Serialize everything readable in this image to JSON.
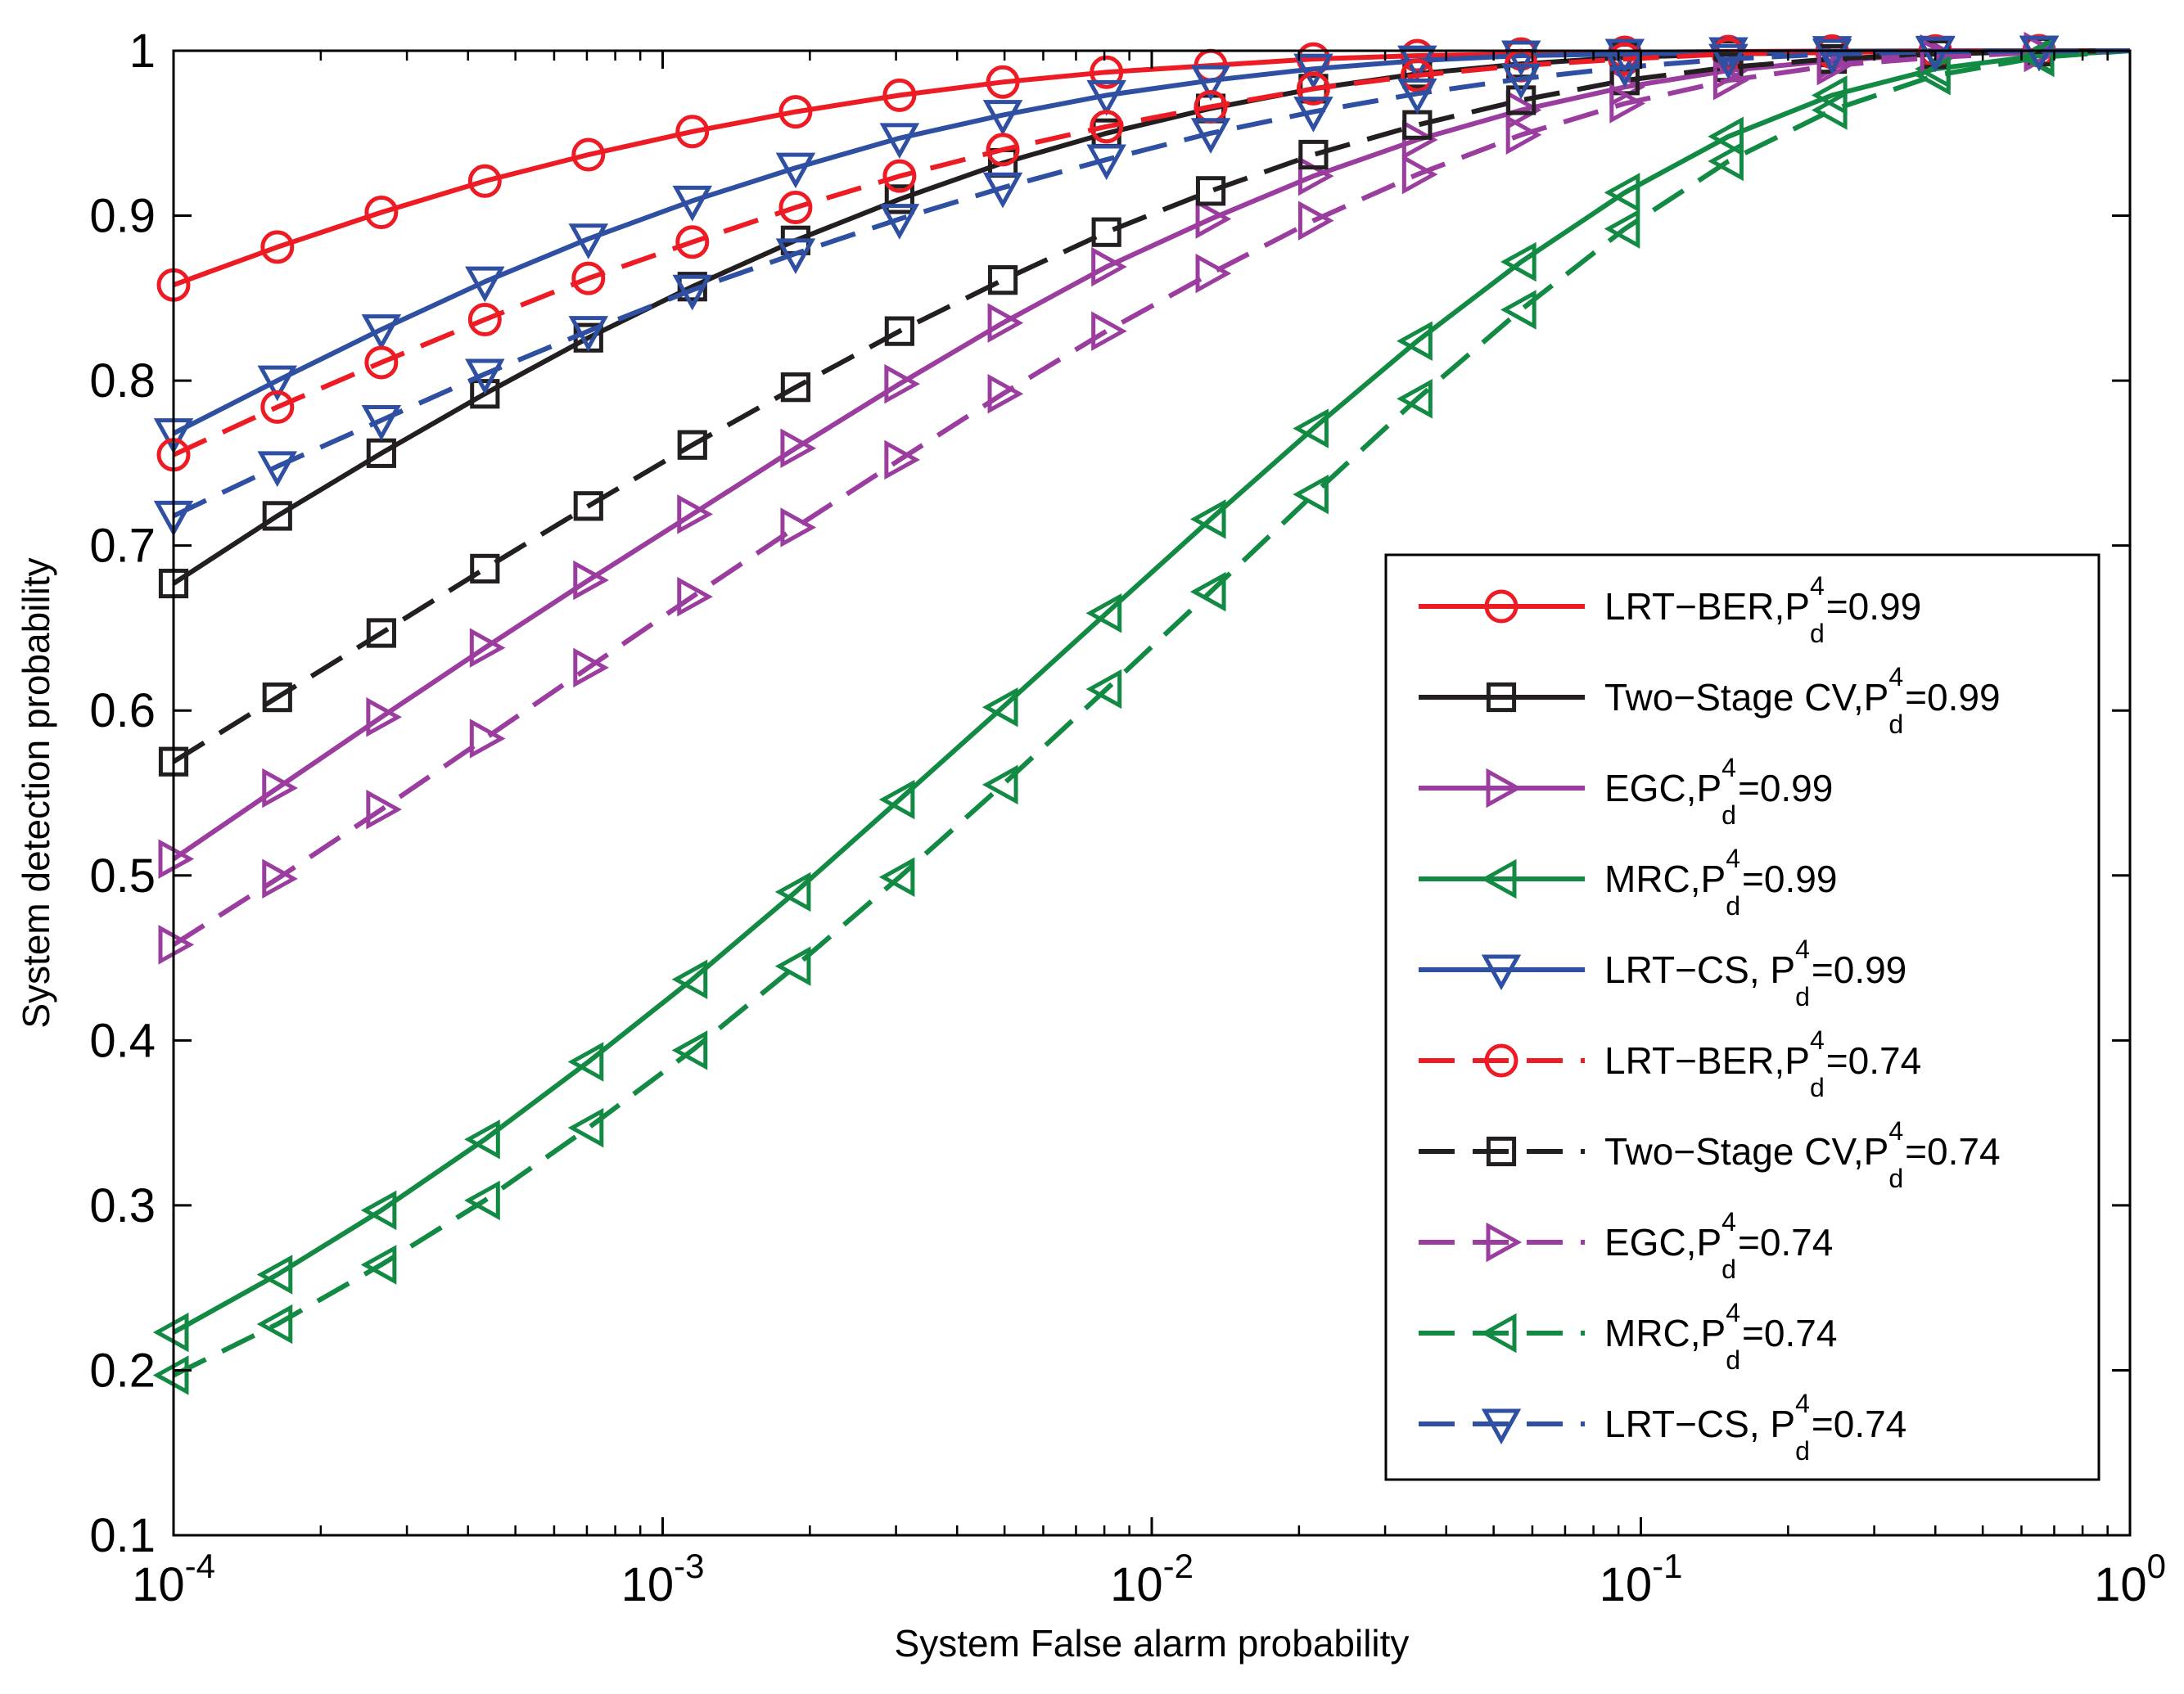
{
  "chart_data": {
    "type": "line",
    "title": "",
    "xlabel": "System False alarm probability",
    "ylabel": "System detection probability",
    "xscale": "log",
    "xlim": [
      0.0001,
      1
    ],
    "ylim": [
      0.1,
      1
    ],
    "grid": false,
    "legend_position": "lower-right",
    "x_ticks": [
      {
        "value": 0.0001,
        "base": "10",
        "exp": "-4"
      },
      {
        "value": 0.001,
        "base": "10",
        "exp": "-3"
      },
      {
        "value": 0.01,
        "base": "10",
        "exp": "-2"
      },
      {
        "value": 0.1,
        "base": "10",
        "exp": "-1"
      },
      {
        "value": 1,
        "base": "10",
        "exp": "0"
      }
    ],
    "y_ticks": [
      {
        "value": 0.1,
        "label": "0.1"
      },
      {
        "value": 0.2,
        "label": "0.2"
      },
      {
        "value": 0.3,
        "label": "0.3"
      },
      {
        "value": 0.4,
        "label": "0.4"
      },
      {
        "value": 0.5,
        "label": "0.5"
      },
      {
        "value": 0.6,
        "label": "0.6"
      },
      {
        "value": 0.7,
        "label": "0.7"
      },
      {
        "value": 0.8,
        "label": "0.8"
      },
      {
        "value": 0.9,
        "label": "0.9"
      },
      {
        "value": 1,
        "label": "1"
      }
    ],
    "x": [
      0.0001,
      0.000163,
      0.000266,
      0.000433,
      0.000705,
      0.00115,
      0.00187,
      0.00305,
      0.00496,
      0.00808,
      0.0132,
      0.0214,
      0.0349,
      0.0569,
      0.0927,
      0.151,
      0.246,
      0.4,
      0.652,
      1
    ],
    "series": [
      {
        "name": "LRT-BER,P_d^4=0.99",
        "label": {
          "pre": "LRT−BER,P",
          "sup": "4",
          "sub": "d",
          "post": "=0.99"
        },
        "color": "#ed1c24",
        "marker": "circle",
        "dash": "solid",
        "values": [
          0.858,
          0.881,
          0.902,
          0.921,
          0.937,
          0.951,
          0.963,
          0.973,
          0.981,
          0.987,
          0.991,
          0.995,
          0.997,
          0.998,
          0.999,
          0.9995,
          0.9998,
          0.9999,
          1.0,
          1.0
        ]
      },
      {
        "name": "Two-Stage CV,P_d^4=0.99",
        "label": {
          "pre": "Two−Stage CV,P",
          "sup": "4",
          "sub": "d",
          "post": "=0.99"
        },
        "color": "#231f20",
        "marker": "square",
        "dash": "solid",
        "values": [
          0.677,
          0.718,
          0.756,
          0.792,
          0.826,
          0.857,
          0.885,
          0.91,
          0.932,
          0.95,
          0.965,
          0.977,
          0.986,
          0.992,
          0.996,
          0.998,
          0.999,
          0.9996,
          0.9999,
          1.0
        ]
      },
      {
        "name": "EGC,P_d^4=0.99",
        "label": {
          "pre": "EGC,P",
          "sup": "4",
          "sub": "d",
          "post": "=0.99"
        },
        "color": "#9b3d9e",
        "marker": "triangle-right",
        "dash": "solid",
        "values": [
          0.51,
          0.553,
          0.596,
          0.638,
          0.679,
          0.719,
          0.759,
          0.798,
          0.835,
          0.869,
          0.898,
          0.924,
          0.946,
          0.964,
          0.978,
          0.988,
          0.994,
          0.998,
          0.9995,
          1.0
        ]
      },
      {
        "name": "MRC,P_d^4=0.99",
        "label": {
          "pre": "MRC,P",
          "sup": "4",
          "sub": "d",
          "post": "=0.99"
        },
        "color": "#128a43",
        "marker": "triangle-left",
        "dash": "solid",
        "values": [
          0.223,
          0.258,
          0.297,
          0.34,
          0.387,
          0.437,
          0.49,
          0.546,
          0.602,
          0.659,
          0.716,
          0.771,
          0.824,
          0.872,
          0.914,
          0.948,
          0.973,
          0.989,
          0.997,
          1.0
        ]
      },
      {
        "name": "LRT-CS, P_d^4=0.99",
        "label": {
          "pre": "LRT−CS, P",
          "sup": "4",
          "sub": "d",
          "post": "=0.99"
        },
        "color": "#2e4fa2",
        "marker": "triangle-down",
        "dash": "solid",
        "values": [
          0.768,
          0.8,
          0.831,
          0.86,
          0.886,
          0.909,
          0.929,
          0.947,
          0.961,
          0.973,
          0.982,
          0.989,
          0.994,
          0.997,
          0.998,
          0.999,
          0.9997,
          0.9999,
          1.0,
          1.0
        ]
      },
      {
        "name": "LRT-BER,P_d^4=0.74",
        "label": {
          "pre": "LRT−BER,P",
          "sup": "4",
          "sub": "d",
          "post": "=0.74"
        },
        "color": "#ed1c24",
        "marker": "circle",
        "dash": "dashed",
        "values": [
          0.755,
          0.784,
          0.811,
          0.837,
          0.862,
          0.884,
          0.905,
          0.924,
          0.94,
          0.954,
          0.966,
          0.977,
          0.985,
          0.991,
          0.995,
          0.998,
          0.999,
          0.9997,
          1.0,
          1.0
        ]
      },
      {
        "name": "Two-Stage CV,P_d^4=0.74",
        "label": {
          "pre": "Two−Stage CV,P",
          "sup": "4",
          "sub": "d",
          "post": "=0.74"
        },
        "color": "#231f20",
        "marker": "square",
        "dash": "dashed",
        "values": [
          0.569,
          0.608,
          0.647,
          0.686,
          0.724,
          0.761,
          0.796,
          0.83,
          0.861,
          0.89,
          0.915,
          0.937,
          0.955,
          0.97,
          0.982,
          0.99,
          0.995,
          0.998,
          0.9995,
          1.0
        ]
      },
      {
        "name": "EGC,P_d^4=0.74",
        "label": {
          "pre": "EGC,P",
          "sup": "4",
          "sub": "d",
          "post": "=0.74"
        },
        "color": "#9b3d9e",
        "marker": "triangle-right",
        "dash": "dashed",
        "values": [
          0.458,
          0.498,
          0.54,
          0.583,
          0.626,
          0.669,
          0.711,
          0.752,
          0.792,
          0.83,
          0.865,
          0.897,
          0.925,
          0.949,
          0.968,
          0.982,
          0.991,
          0.996,
          0.999,
          1.0
        ]
      },
      {
        "name": "MRC,P_d^4=0.74",
        "label": {
          "pre": "MRC,P",
          "sup": "4",
          "sub": "d",
          "post": "=0.74"
        },
        "color": "#128a43",
        "marker": "triangle-left",
        "dash": "dashed",
        "values": [
          0.197,
          0.228,
          0.264,
          0.303,
          0.347,
          0.394,
          0.445,
          0.499,
          0.555,
          0.613,
          0.672,
          0.731,
          0.789,
          0.843,
          0.892,
          0.933,
          0.964,
          0.985,
          0.996,
          1.0
        ]
      },
      {
        "name": "LRT-CS, P_d^4=0.74",
        "label": {
          "pre": "LRT−CS, P",
          "sup": "4",
          "sub": "d",
          "post": "=0.74"
        },
        "color": "#2e4fa2",
        "marker": "triangle-down",
        "dash": "dashed",
        "values": [
          0.718,
          0.748,
          0.776,
          0.804,
          0.83,
          0.855,
          0.877,
          0.898,
          0.917,
          0.934,
          0.95,
          0.963,
          0.974,
          0.983,
          0.99,
          0.995,
          0.998,
          0.9994,
          0.9999,
          1.0
        ]
      }
    ]
  }
}
